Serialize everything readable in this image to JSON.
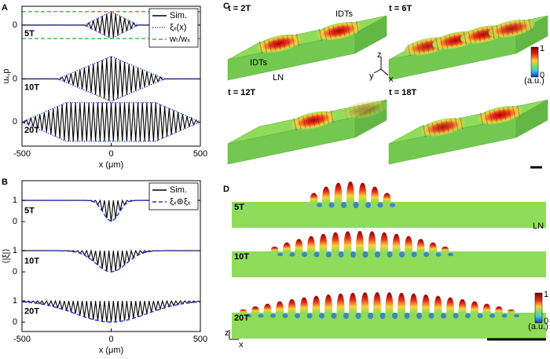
{
  "chart_data": [
    {
      "type": "line",
      "panel_label": "A",
      "xlabel": "x (μm)",
      "ylabel": "uₓ,p",
      "xlim": [
        -500,
        500
      ],
      "xticks": [
        -500,
        0,
        500
      ],
      "ylim": [
        -9,
        1.4
      ],
      "yticks": [
        {
          "value": 0,
          "label": "0"
        },
        {
          "value": -4,
          "label": "0"
        },
        {
          "value": -7.2,
          "label": "0"
        }
      ],
      "annotations": [
        "5T",
        "10T",
        "20T"
      ],
      "legend": "upper right",
      "series": [
        {
          "name": "Sim.",
          "color": "#000000",
          "style": "solid",
          "x": [
            -500,
            -150,
            -137.5,
            -125,
            -112.5,
            -100,
            -87.5,
            -75,
            -62.5,
            -50,
            -37.5,
            -25,
            -12.5,
            0,
            12.5,
            25,
            37.5,
            50,
            62.5,
            75,
            87.5,
            100,
            112.5,
            125,
            137.5,
            150,
            500
          ],
          "values": [
            0,
            0,
            -0.08,
            0.17,
            -0.25,
            0.33,
            -0.42,
            0.5,
            -0.58,
            0.67,
            -0.75,
            0.83,
            -0.92,
            1,
            -0.92,
            0.83,
            -0.75,
            0.67,
            -0.58,
            0.5,
            -0.42,
            0.33,
            -0.25,
            0.17,
            -0.08,
            0,
            0
          ]
        },
        {
          "color": "#000000",
          "style": "solid",
          "x": [
            -500,
            -300,
            -287.5,
            -275,
            -262.5,
            -250,
            -237.5,
            -225,
            -212.5,
            -200,
            -187.5,
            -175,
            -162.5,
            -150,
            -137.5,
            -125,
            -112.5,
            -100,
            -87.5,
            -75,
            -62.5,
            -50,
            -37.5,
            -25,
            -12.5,
            0,
            12.5,
            25,
            37.5,
            50,
            62.5,
            75,
            87.5,
            100,
            112.5,
            125,
            137.5,
            150,
            162.5,
            175,
            187.5,
            200,
            212.5,
            225,
            237.5,
            250,
            262.5,
            275,
            287.5,
            300,
            500
          ],
          "values": [
            -4,
            -4,
            -4.07,
            -3.86,
            -4.21,
            -3.72,
            -4.35,
            -3.58,
            -4.49,
            -3.44,
            -4.63,
            -3.3,
            -4.77,
            -3.16,
            -4.9,
            -3.03,
            -5.04,
            -2.89,
            -5.18,
            -2.75,
            -5.32,
            -2.61,
            -5.46,
            -2.47,
            -5.6,
            -2.33,
            -5.6,
            -2.47,
            -5.46,
            -2.61,
            -5.32,
            -2.75,
            -5.18,
            -2.89,
            -5.04,
            -3.03,
            -4.9,
            -3.16,
            -4.77,
            -3.3,
            -4.63,
            -3.44,
            -4.49,
            -3.58,
            -4.35,
            -3.72,
            -4.21,
            -3.86,
            -4.07,
            -4,
            -4
          ]
        },
        {
          "color": "#000000",
          "style": "solid",
          "x": [
            -500,
            -487.5,
            -475,
            -462.5,
            -450,
            -437.5,
            -425,
            -412.5,
            -400,
            -387.5,
            -375,
            -362.5,
            -350,
            -337.5,
            -325,
            -312.5,
            -300,
            -287.5,
            -275,
            -262.5,
            -250,
            -237.5,
            -225,
            -212.5,
            -200,
            -187.5,
            -175,
            -162.5,
            -150,
            -137.5,
            -125,
            -112.5,
            -100,
            -87.5,
            -75,
            -62.5,
            -50,
            -37.5,
            -25,
            -12.5,
            0,
            12.5,
            25,
            37.5,
            50,
            62.5,
            75,
            87.5,
            100,
            112.5,
            125,
            137.5,
            150,
            162.5,
            175,
            187.5,
            200,
            212.5,
            225,
            237.5,
            250,
            262.5,
            275,
            287.5,
            300,
            312.5,
            325,
            337.5,
            350,
            362.5,
            375,
            387.5,
            400,
            412.5,
            425,
            437.5,
            450,
            462.5,
            475,
            487.5,
            500
          ],
          "values": [
            -7.2,
            -7.27,
            -7.06,
            -7.42,
            -6.91,
            -7.56,
            -6.77,
            -7.7,
            -6.62,
            -7.85,
            -6.48,
            -7.99,
            -6.34,
            -8.14,
            -6.19,
            -8.28,
            -6.05,
            -8.42,
            -5.9,
            -8.57,
            -5.76,
            -8.64,
            -5.76,
            -8.64,
            -5.76,
            -8.64,
            -5.76,
            -8.64,
            -5.76,
            -8.64,
            -5.76,
            -8.64,
            -5.76,
            -8.64,
            -5.76,
            -8.64,
            -5.76,
            -8.64,
            -5.76,
            -8.64,
            -5.76,
            -8.64,
            -5.76,
            -8.64,
            -5.76,
            -8.64,
            -5.76,
            -8.64,
            -5.76,
            -8.64,
            -5.76,
            -8.64,
            -5.76,
            -8.64,
            -5.76,
            -8.64,
            -5.76,
            -8.64,
            -5.76,
            -8.64,
            -5.76,
            -8.57,
            -5.9,
            -8.42,
            -6.05,
            -8.28,
            -6.19,
            -8.14,
            -6.34,
            -7.99,
            -6.48,
            -7.85,
            -6.62,
            -7.7,
            -6.77,
            -7.56,
            -6.91,
            -7.42,
            -7.06,
            -7.27,
            -7.2
          ]
        },
        {
          "name": "ξₓ(x)",
          "color": "#2233dd",
          "style": "dotted",
          "x": [
            -500,
            -150,
            0,
            150,
            500
          ],
          "values": [
            0,
            0,
            1,
            0,
            0
          ],
          "lower": [
            0,
            0,
            -1,
            0,
            0
          ]
        },
        {
          "color": "#2233dd",
          "style": "dotted",
          "x": [
            -500,
            -300,
            0,
            300,
            500
          ],
          "values": [
            -4,
            -4,
            -2.33,
            -4,
            -4
          ],
          "lower": [
            -4,
            -4,
            -5.67,
            -4,
            -4
          ]
        },
        {
          "color": "#2233dd",
          "style": "dotted",
          "x": [
            -500,
            -250,
            250,
            500
          ],
          "values": [
            -7.2,
            -5.76,
            -5.76,
            -7.2
          ],
          "lower": [
            -7.2,
            -8.64,
            -8.64,
            -7.2
          ]
        },
        {
          "name": "wₜ/wₓ",
          "color": "#33bb33",
          "style": "dashed",
          "x": [
            -500,
            500
          ],
          "values": [
            1,
            1
          ],
          "lower": [
            -1,
            -1
          ]
        }
      ]
    },
    {
      "type": "line",
      "panel_label": "B",
      "xlabel": "x (μm)",
      "ylabel": "⟨|ξ|⟩",
      "xlim": [
        -500,
        500
      ],
      "xticks": [
        -500,
        0,
        500
      ],
      "ylim": [
        -0.44,
        6.67
      ],
      "yticks": [
        {
          "value": 5.74,
          "label": "1"
        },
        {
          "value": 4.74,
          "label": "0"
        },
        {
          "value": 3.37,
          "label": "1"
        },
        {
          "value": 2.37,
          "label": "0"
        },
        1,
        0
      ],
      "annotations": [
        "5T",
        "10T",
        "20T"
      ],
      "legend": "upper right",
      "series": [
        {
          "name": "Sim.",
          "color": "#000000",
          "style": "solid",
          "x": [
            -500,
            -150,
            -137.5,
            -125,
            -112.5,
            -100,
            -87.5,
            -75,
            -62.5,
            -50,
            -37.5,
            -25,
            -12.5,
            0,
            12.5,
            25,
            37.5,
            50,
            62.5,
            75,
            87.5,
            100,
            112.5,
            125,
            137.5,
            150,
            500
          ],
          "values": [
            5.74,
            5.74,
            5.74,
            5.73,
            5.74,
            5.68,
            5.74,
            5.53,
            5.74,
            5.24,
            5.74,
            4.9,
            5.74,
            4.74,
            5.74,
            4.9,
            5.74,
            5.24,
            5.74,
            5.53,
            5.74,
            5.68,
            5.74,
            5.73,
            5.74,
            5.74,
            5.74
          ]
        },
        {
          "color": "#000000",
          "style": "solid",
          "x": [
            -500,
            -300,
            -287.5,
            -275,
            -262.5,
            -250,
            -237.5,
            -225,
            -212.5,
            -200,
            -187.5,
            -175,
            -162.5,
            -150,
            -137.5,
            -125,
            -112.5,
            -100,
            -87.5,
            -75,
            -62.5,
            -50,
            -37.5,
            -25,
            -12.5,
            0,
            12.5,
            25,
            37.5,
            50,
            62.5,
            75,
            87.5,
            100,
            112.5,
            125,
            137.5,
            150,
            162.5,
            175,
            187.5,
            200,
            212.5,
            225,
            237.5,
            250,
            262.5,
            275,
            287.5,
            300,
            500
          ],
          "values": [
            3.37,
            3.37,
            3.37,
            3.36,
            3.37,
            3.36,
            3.37,
            3.34,
            3.37,
            3.31,
            3.37,
            3.25,
            3.37,
            3.16,
            3.37,
            3.03,
            3.37,
            2.87,
            3.37,
            2.69,
            3.37,
            2.53,
            3.37,
            2.41,
            3.37,
            2.37,
            3.37,
            2.41,
            3.37,
            2.53,
            3.37,
            2.69,
            3.37,
            2.87,
            3.37,
            3.03,
            3.37,
            3.16,
            3.37,
            3.25,
            3.37,
            3.31,
            3.37,
            3.34,
            3.37,
            3.36,
            3.37,
            3.36,
            3.37,
            3.37,
            3.37
          ]
        },
        {
          "color": "#000000",
          "style": "solid",
          "x": [
            -500,
            -487.5,
            -475,
            -462.5,
            -450,
            -437.5,
            -425,
            -412.5,
            -400,
            -387.5,
            -375,
            -362.5,
            -350,
            -337.5,
            -325,
            -312.5,
            -300,
            -287.5,
            -275,
            -262.5,
            -250,
            -237.5,
            -225,
            -212.5,
            -200,
            -187.5,
            -175,
            -162.5,
            -150,
            -137.5,
            -125,
            -112.5,
            -100,
            -87.5,
            -75,
            -62.5,
            -50,
            -37.5,
            -25,
            -12.5,
            0,
            12.5,
            25,
            37.5,
            50,
            62.5,
            75,
            87.5,
            100,
            112.5,
            125,
            137.5,
            150,
            162.5,
            175,
            187.5,
            200,
            212.5,
            225,
            237.5,
            250,
            262.5,
            275,
            287.5,
            300,
            312.5,
            325,
            337.5,
            350,
            362.5,
            375,
            387.5,
            400,
            412.5,
            425,
            437.5,
            450,
            462.5,
            475,
            487.5,
            500
          ],
          "values": [
            0.96,
            1,
            0.94,
            1,
            0.92,
            1,
            0.9,
            1,
            0.87,
            1,
            0.83,
            1,
            0.79,
            1,
            0.74,
            1,
            0.68,
            1,
            0.62,
            1,
            0.55,
            1,
            0.47,
            1,
            0.4,
            1,
            0.32,
            1,
            0.25,
            1,
            0.18,
            1,
            0.12,
            1,
            0.07,
            1,
            0.03,
            1,
            0.01,
            1,
            0,
            1,
            0.01,
            1,
            0.03,
            1,
            0.07,
            1,
            0.12,
            1,
            0.18,
            1,
            0.25,
            1,
            0.32,
            1,
            0.4,
            1,
            0.47,
            1,
            0.55,
            1,
            0.62,
            1,
            0.68,
            1,
            0.74,
            1,
            0.79,
            1,
            0.83,
            1,
            0.87,
            1,
            0.9,
            1,
            0.92,
            1,
            0.94,
            1,
            0.96
          ]
        },
        {
          "name": "ξₓ⊛ξₓ",
          "color": "#2233dd",
          "style": "dashed",
          "x": [
            -500,
            -150,
            -125,
            -100,
            -75,
            -50,
            -25,
            0,
            25,
            50,
            75,
            100,
            125,
            150,
            500
          ],
          "values": [
            5.74,
            5.74,
            5.73,
            5.68,
            5.53,
            5.24,
            4.9,
            4.74,
            4.9,
            5.24,
            5.53,
            5.68,
            5.73,
            5.74,
            5.74
          ]
        },
        {
          "color": "#2233dd",
          "style": "dashed",
          "x": [
            -500,
            -300,
            -275,
            -250,
            -225,
            -200,
            -175,
            -150,
            -125,
            -100,
            -75,
            -50,
            -25,
            0,
            25,
            50,
            75,
            100,
            125,
            150,
            175,
            200,
            225,
            250,
            275,
            300,
            500
          ],
          "values": [
            3.37,
            3.37,
            3.36,
            3.36,
            3.34,
            3.31,
            3.25,
            3.16,
            3.03,
            2.87,
            2.69,
            2.53,
            2.41,
            2.37,
            2.41,
            2.53,
            2.69,
            2.87,
            3.03,
            3.16,
            3.25,
            3.31,
            3.34,
            3.36,
            3.36,
            3.37,
            3.37
          ]
        },
        {
          "color": "#2233dd",
          "style": "dashed",
          "x": [
            -500,
            -450,
            -400,
            -350,
            -300,
            -250,
            -200,
            -150,
            -100,
            -50,
            0,
            50,
            100,
            150,
            200,
            250,
            300,
            350,
            400,
            450,
            500
          ],
          "values": [
            0.96,
            0.92,
            0.87,
            0.79,
            0.68,
            0.55,
            0.4,
            0.25,
            0.12,
            0.03,
            0,
            0.03,
            0.12,
            0.25,
            0.4,
            0.55,
            0.68,
            0.79,
            0.87,
            0.92,
            0.96
          ]
        }
      ]
    }
  ],
  "panel_c": {
    "label": "C",
    "times": [
      "t = 2T",
      "t = 6T",
      "t = 12T",
      "t = 18T"
    ],
    "idt_labels": [
      "IDTs",
      "IDTs"
    ],
    "substrate": "LN",
    "axes": [
      "z",
      "y",
      "x"
    ],
    "colorbar": {
      "max": 1,
      "min": 0,
      "unit": "(a.u.)"
    }
  },
  "panel_d": {
    "label": "D",
    "rows": [
      "5T",
      "10T",
      "20T"
    ],
    "substrate": "LN",
    "axes": [
      "z",
      "x"
    ],
    "colorbar": {
      "max": 1,
      "min": 0,
      "unit": "(a.u.)"
    }
  }
}
